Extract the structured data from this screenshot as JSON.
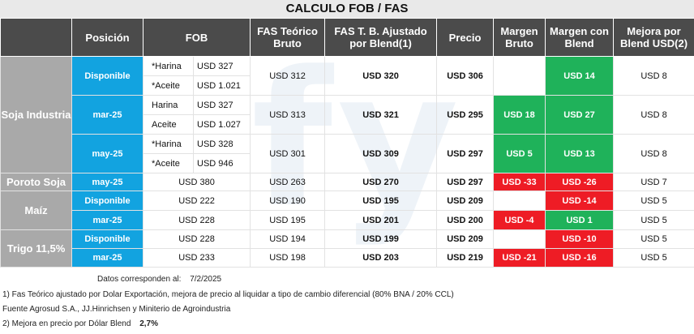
{
  "title": "CALCULO FOB / FAS",
  "headers": {
    "posicion": "Posición",
    "fob": "FOB",
    "fas_teorico": "FAS Teórico Bruto",
    "fas_ajustado": "FAS T. B. Ajustado por Blend(1)",
    "precio": "Precio",
    "margen_bruto": "Margen Bruto",
    "margen_blend": "Margen con Blend",
    "mejora": "Mejora por Blend USD(2)"
  },
  "products": {
    "soja_industria": "Soja Industria",
    "poroto_soja": "Poroto Soja",
    "maiz": "Maíz",
    "trigo": "Trigo 11,5%"
  },
  "rows": {
    "r1": {
      "posicion": "Disponible",
      "fob_a_label": "*Harina",
      "fob_a_value": "USD 327",
      "fob_b_label": "*Aceite",
      "fob_b_value": "USD 1.021",
      "fas": "USD 312",
      "fas_aj": "USD 320",
      "precio": "USD 306",
      "margen_bruto": "",
      "margen_blend": "USD 14",
      "mejora": "USD 8"
    },
    "r2": {
      "posicion": "mar-25",
      "fob_a_label": "Harina",
      "fob_a_value": "USD 327",
      "fob_b_label": "Aceite",
      "fob_b_value": "USD 1.027",
      "fas": "USD 313",
      "fas_aj": "USD 321",
      "precio": "USD 295",
      "margen_bruto": "USD 18",
      "margen_blend": "USD 27",
      "mejora": "USD 8"
    },
    "r3": {
      "posicion": "may-25",
      "fob_a_label": "*Harina",
      "fob_a_value": "USD 328",
      "fob_b_label": "*Aceite",
      "fob_b_value": "USD 946",
      "fas": "USD 301",
      "fas_aj": "USD 309",
      "precio": "USD 297",
      "margen_bruto": "USD 5",
      "margen_blend": "USD 13",
      "mejora": "USD 8"
    },
    "r4": {
      "posicion": "may-25",
      "fob": "USD 380",
      "fas": "USD 263",
      "fas_aj": "USD 270",
      "precio": "USD 297",
      "margen_bruto": "USD -33",
      "margen_blend": "USD -26",
      "mejora": "USD 7"
    },
    "r5": {
      "posicion": "Disponible",
      "fob": "USD 222",
      "fas": "USD 190",
      "fas_aj": "USD 195",
      "precio": "USD 209",
      "margen_bruto": "",
      "margen_blend": "USD -14",
      "mejora": "USD 5"
    },
    "r6": {
      "posicion": "mar-25",
      "fob": "USD 228",
      "fas": "USD 195",
      "fas_aj": "USD 201",
      "precio": "USD 200",
      "margen_bruto": "USD -4",
      "margen_blend": "USD 1",
      "mejora": "USD 5"
    },
    "r7": {
      "posicion": "Disponible",
      "fob": "USD 228",
      "fas": "USD 194",
      "fas_aj": "USD 199",
      "precio": "USD 209",
      "margen_bruto": "",
      "margen_blend": "USD -10",
      "mejora": "USD 5"
    },
    "r8": {
      "posicion": "mar-25",
      "fob": "USD 233",
      "fas": "USD 198",
      "fas_aj": "USD 203",
      "precio": "USD 219",
      "margen_bruto": "USD -21",
      "margen_blend": "USD -16",
      "mejora": "USD 5"
    }
  },
  "footer": {
    "datos_label": "Datos corresponden al:",
    "datos_date": "7/2/2025",
    "note1": "1) Fas Teórico ajustado por Dolar Exportación, mejora de precio al liquidar a tipo de cambio diferencial (80% BNA / 20% CCL)",
    "fuente": "Fuente Agrosud S.A., JJ.Hinrichsen y Miniterio de Agroindustria",
    "note2_label": "2) Mejora en precio por Dólar Blend",
    "note2_value": "2,7%"
  },
  "colors": {
    "header_bg": "#4b4b4b",
    "product_bg": "#a9a9a9",
    "position_bg": "#12a3e0",
    "positive": "#1fb25a",
    "negative": "#ee1c25"
  }
}
